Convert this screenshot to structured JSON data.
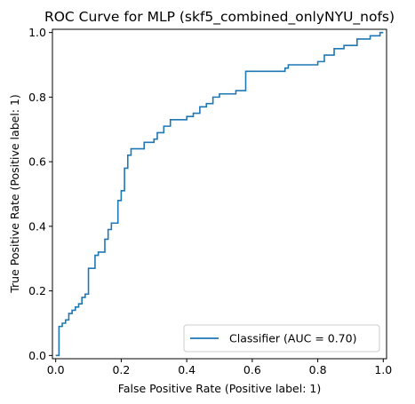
{
  "chart_data": {
    "type": "line",
    "title": "ROC Curve for MLP (skf5_combined_onlyNYU_nofs)",
    "xlabel": "False Positive Rate (Positive label: 1)",
    "ylabel": "True Positive Rate (Positive label: 1)",
    "xlim": [
      -0.01,
      1.01
    ],
    "ylim": [
      -0.01,
      1.01
    ],
    "xticks": [
      0.0,
      0.2,
      0.4,
      0.6,
      0.8,
      1.0
    ],
    "yticks": [
      0.0,
      0.2,
      0.4,
      0.6,
      0.8,
      1.0
    ],
    "xtick_labels": [
      "0.0",
      "0.2",
      "0.4",
      "0.6",
      "0.8",
      "1.0"
    ],
    "ytick_labels": [
      "0.0",
      "0.2",
      "0.4",
      "0.6",
      "0.8",
      "1.0"
    ],
    "grid": false,
    "legend_position": "lower right",
    "series": [
      {
        "name": "Classifier (AUC = 0.70)",
        "color": "#1f77b4",
        "step": true,
        "x": [
          0.0,
          0.01,
          0.01,
          0.02,
          0.02,
          0.03,
          0.03,
          0.04,
          0.04,
          0.05,
          0.05,
          0.06,
          0.06,
          0.07,
          0.07,
          0.08,
          0.08,
          0.09,
          0.09,
          0.1,
          0.1,
          0.12,
          0.12,
          0.13,
          0.13,
          0.15,
          0.15,
          0.16,
          0.16,
          0.17,
          0.17,
          0.19,
          0.19,
          0.2,
          0.2,
          0.21,
          0.21,
          0.22,
          0.22,
          0.23,
          0.23,
          0.24,
          0.24,
          0.27,
          0.27,
          0.3,
          0.3,
          0.31,
          0.31,
          0.32,
          0.32,
          0.33,
          0.33,
          0.35,
          0.35,
          0.36,
          0.36,
          0.4,
          0.4,
          0.42,
          0.42,
          0.44,
          0.44,
          0.46,
          0.46,
          0.48,
          0.48,
          0.5,
          0.5,
          0.52,
          0.52,
          0.55,
          0.55,
          0.57,
          0.57,
          0.58,
          0.58,
          0.7,
          0.7,
          0.71,
          0.71,
          0.8,
          0.8,
          0.82,
          0.82,
          0.85,
          0.85,
          0.88,
          0.88,
          0.92,
          0.92,
          0.96,
          0.96,
          0.99,
          0.99,
          1.0
        ],
        "y": [
          0.0,
          0.0,
          0.09,
          0.09,
          0.1,
          0.1,
          0.11,
          0.11,
          0.13,
          0.13,
          0.14,
          0.14,
          0.15,
          0.15,
          0.16,
          0.16,
          0.18,
          0.18,
          0.19,
          0.19,
          0.27,
          0.27,
          0.31,
          0.31,
          0.32,
          0.32,
          0.36,
          0.36,
          0.39,
          0.39,
          0.41,
          0.41,
          0.48,
          0.48,
          0.51,
          0.51,
          0.58,
          0.58,
          0.62,
          0.62,
          0.64,
          0.64,
          0.64,
          0.64,
          0.66,
          0.66,
          0.67,
          0.67,
          0.69,
          0.69,
          0.69,
          0.69,
          0.71,
          0.71,
          0.73,
          0.73,
          0.73,
          0.73,
          0.74,
          0.74,
          0.75,
          0.75,
          0.77,
          0.77,
          0.78,
          0.78,
          0.8,
          0.8,
          0.81,
          0.81,
          0.81,
          0.81,
          0.82,
          0.82,
          0.82,
          0.82,
          0.88,
          0.88,
          0.89,
          0.89,
          0.9,
          0.9,
          0.91,
          0.91,
          0.93,
          0.93,
          0.95,
          0.95,
          0.96,
          0.96,
          0.98,
          0.98,
          0.99,
          0.99,
          1.0,
          1.0
        ]
      }
    ]
  }
}
